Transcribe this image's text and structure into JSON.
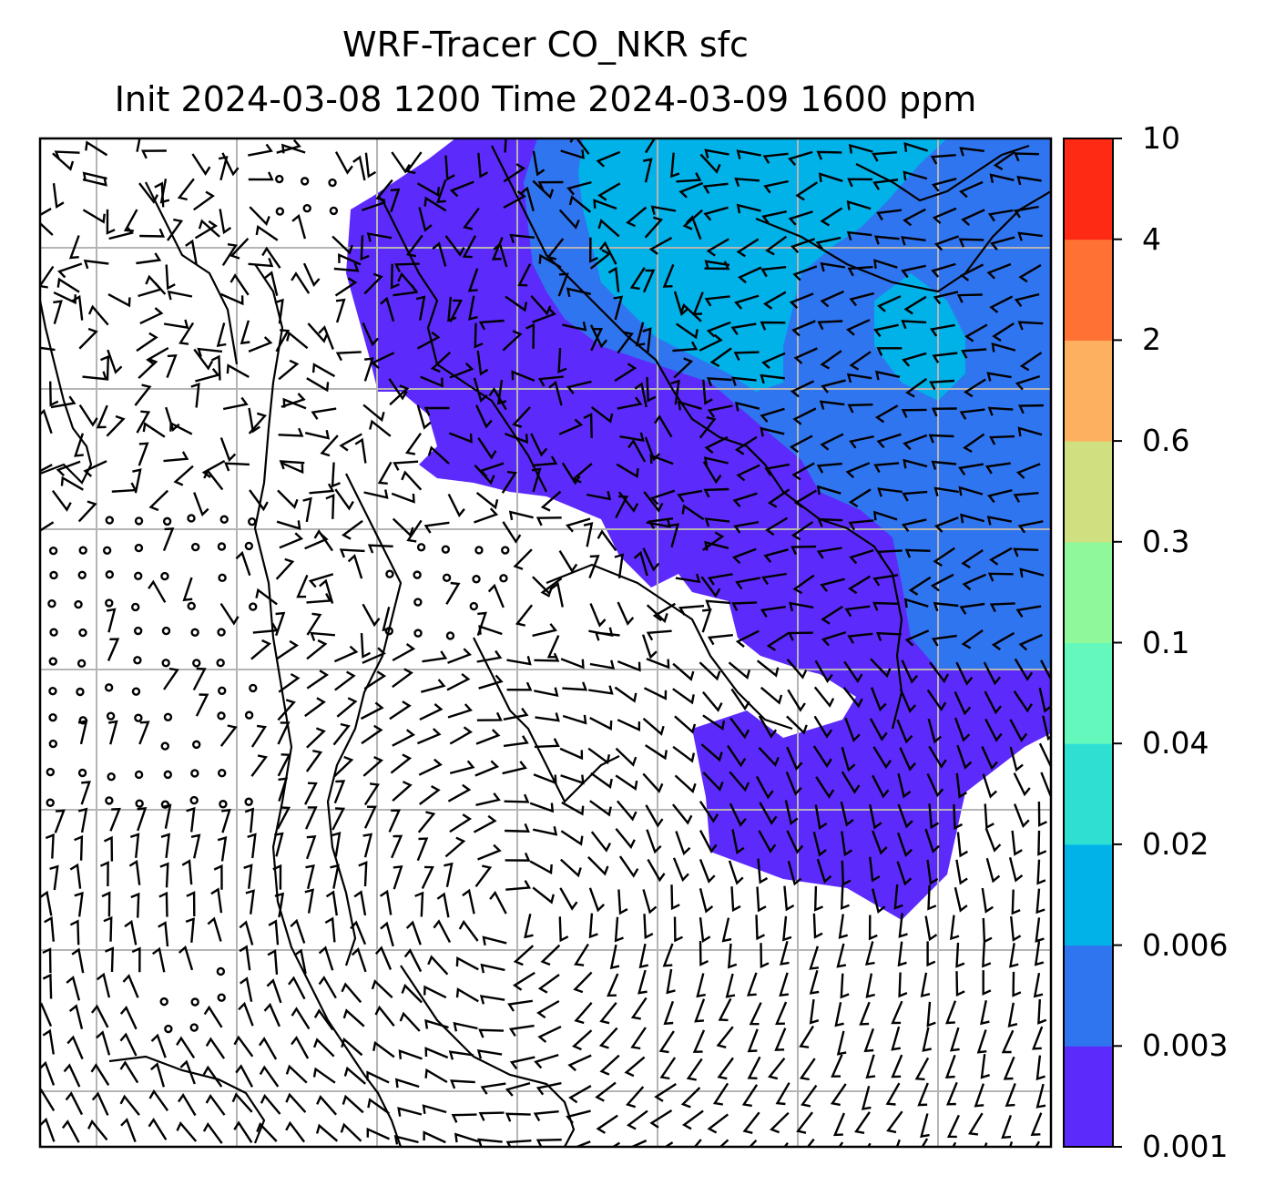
{
  "title": {
    "line1": "WRF-Tracer CO_NKR sfc",
    "line2": "Init 2024-03-08 1200 Time 2024-03-09 1600 ppm"
  },
  "colorbar": {
    "ticks": [
      "0.001",
      "0.003",
      "0.006",
      "0.02",
      "0.04",
      "0.1",
      "0.3",
      "0.6",
      "2",
      "4",
      "10"
    ],
    "colors": [
      "#5c2bfb",
      "#3075f0",
      "#00b2e8",
      "#2fe0d2",
      "#65f8bd",
      "#8ef89a",
      "#d0e080",
      "#fdb060",
      "#ff7233",
      "#fe2a14"
    ]
  },
  "map": {
    "fill_classes": [
      {
        "range": "0.001–0.003",
        "color": "#5c2bfb"
      },
      {
        "range": "0.003–0.006",
        "color": "#3075f0"
      },
      {
        "range": "0.006–0.02",
        "color": "#00b2e8"
      }
    ],
    "gridlines": true,
    "wind_barbs": true
  }
}
